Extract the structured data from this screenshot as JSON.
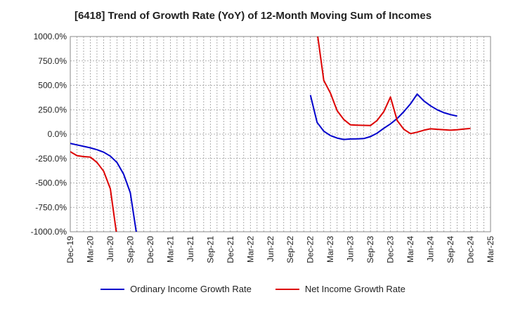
{
  "chart_data": {
    "type": "line",
    "title": "[6418]  Trend of Growth Rate (YoY) of 12-Month Moving Sum of Incomes",
    "xlabel": "",
    "ylabel": "",
    "ylim": [
      -1000,
      1000
    ],
    "y_ticks": [
      "1000.0%",
      "750.0%",
      "500.0%",
      "250.0%",
      "0.0%",
      "-250.0%",
      "-500.0%",
      "-750.0%",
      "-1000.0%"
    ],
    "y_tick_values": [
      1000,
      750,
      500,
      250,
      0,
      -250,
      -500,
      -750,
      -1000
    ],
    "x_ticks": [
      "Dec-19",
      "Mar-20",
      "Jun-20",
      "Sep-20",
      "Dec-20",
      "Mar-21",
      "Jun-21",
      "Sep-21",
      "Dec-21",
      "Mar-22",
      "Jun-22",
      "Sep-22",
      "Dec-22",
      "Mar-23",
      "Jun-23",
      "Sep-23",
      "Dec-23",
      "Mar-24",
      "Jun-24",
      "Sep-24",
      "Dec-24",
      "Mar-25"
    ],
    "grid": true,
    "legend_position": "bottom",
    "series": [
      {
        "name": "Ordinary Income Growth Rate",
        "color": "#0000cc",
        "points": [
          [
            0,
            -95
          ],
          [
            1,
            -110
          ],
          [
            2,
            -125
          ],
          [
            3,
            -140
          ],
          [
            4,
            -160
          ],
          [
            5,
            -185
          ],
          [
            6,
            -225
          ],
          [
            7,
            -290
          ],
          [
            8,
            -410
          ],
          [
            9,
            -600
          ],
          [
            10,
            -1050
          ],
          null,
          [
            36,
            400
          ],
          [
            37,
            120
          ],
          [
            38,
            30
          ],
          [
            39,
            -15
          ],
          [
            40,
            -40
          ],
          [
            41,
            -55
          ],
          [
            42,
            -50
          ],
          [
            43,
            -48
          ],
          [
            44,
            -45
          ],
          [
            45,
            -25
          ],
          [
            46,
            10
          ],
          [
            47,
            60
          ],
          [
            48,
            105
          ],
          [
            49,
            160
          ],
          [
            50,
            230
          ],
          [
            51,
            310
          ],
          [
            52,
            410
          ],
          [
            53,
            340
          ],
          [
            54,
            290
          ],
          [
            55,
            250
          ],
          [
            56,
            220
          ],
          [
            57,
            200
          ],
          [
            58,
            185
          ]
        ]
      },
      {
        "name": "Net Income Growth Rate",
        "color": "#dd0000",
        "points": [
          [
            0,
            -180
          ],
          [
            1,
            -220
          ],
          [
            2,
            -230
          ],
          [
            3,
            -235
          ],
          [
            4,
            -290
          ],
          [
            5,
            -380
          ],
          [
            6,
            -560
          ],
          [
            7,
            -1050
          ],
          null,
          [
            37,
            1050
          ],
          [
            38,
            550
          ],
          [
            39,
            420
          ],
          [
            40,
            240
          ],
          [
            41,
            150
          ],
          [
            42,
            95
          ],
          [
            43,
            92
          ],
          [
            44,
            90
          ],
          [
            45,
            88
          ],
          [
            46,
            140
          ],
          [
            47,
            230
          ],
          [
            48,
            380
          ],
          [
            49,
            140
          ],
          [
            50,
            50
          ],
          [
            51,
            5
          ],
          [
            52,
            20
          ],
          [
            53,
            40
          ],
          [
            54,
            55
          ],
          [
            55,
            50
          ],
          [
            56,
            45
          ],
          [
            57,
            40
          ],
          [
            58,
            45
          ],
          [
            59,
            52
          ],
          [
            60,
            58
          ]
        ]
      }
    ]
  }
}
